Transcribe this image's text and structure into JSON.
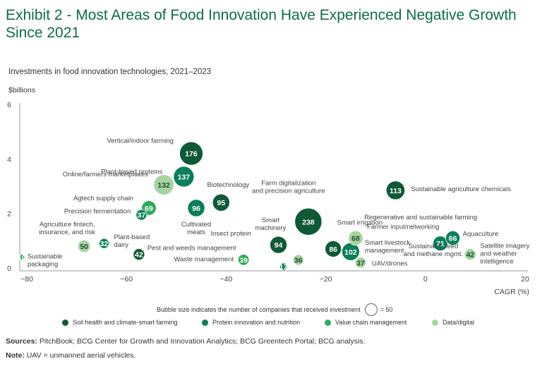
{
  "title": "Exhibit 2 - Most Areas of Food Innovation Have Experienced Negative Growth Since 2021",
  "subtitle": "Investments in food innovation technologies, 2021–2023",
  "size_note": {
    "text": "Bubble size indicates the number of companies that received investment",
    "value": "= 50"
  },
  "legend": [
    {
      "label": "Soil health and climate-smart farming",
      "color": "#0f5a36"
    },
    {
      "label": "Protein innovation and nutrition",
      "color": "#0b7f5b"
    },
    {
      "label": "Value chain management",
      "color": "#2eaa5c"
    },
    {
      "label": "Data/digital",
      "color": "#a6d49f"
    }
  ],
  "sources": {
    "label": "Sources:",
    "text": "PitchBook; BCG Center for Growth and Innovation Analytics; BCG Greentech Portal; BCG analysis."
  },
  "note": {
    "label": "Note:",
    "text": "UAV = unmanned aerial vehicles."
  },
  "chart_data": {
    "type": "scatter",
    "xlabel": "CAGR (%)",
    "ylabel": "$billions",
    "xlim": [
      -82,
      20
    ],
    "ylim": [
      0,
      6
    ],
    "xticks": [
      -80,
      -60,
      -40,
      -20,
      0,
      20
    ],
    "xtick_labels": [
      "−80",
      "−60",
      "−40",
      "−20",
      "0",
      "20"
    ],
    "yticks": [
      0,
      2,
      4,
      6
    ],
    "grid": false,
    "bubble_size_reference": 50,
    "points": [
      {
        "label": "Vertical/indoor farming",
        "x": -47,
        "y": 4.2,
        "size": 176,
        "category": 0
      },
      {
        "label": "Plant-based proteins",
        "x": -48.5,
        "y": 3.35,
        "size": 137,
        "category": 1
      },
      {
        "label": "Online/farmers marketplaces",
        "x": -52.5,
        "y": 3.05,
        "size": 132,
        "category": 3
      },
      {
        "label": "Agtech supply chain",
        "x": -55.5,
        "y": 2.2,
        "size": 69,
        "category": 2
      },
      {
        "label": "Precision fermentation",
        "x": -57,
        "y": 1.95,
        "size": 37,
        "category": 1
      },
      {
        "label": "Cultivated meats",
        "x": -46,
        "y": 2.2,
        "size": 96,
        "category": 1
      },
      {
        "label": "Biotechnology",
        "x": -41,
        "y": 2.4,
        "size": 95,
        "category": 0
      },
      {
        "label": "Agriculture fintech, insurance, and risk",
        "x": -68.5,
        "y": 0.8,
        "size": 50,
        "category": 3
      },
      {
        "label": "Plant-based dairy",
        "x": -64.5,
        "y": 0.9,
        "size": 32,
        "category": 1
      },
      {
        "label": "Sustainable packaging",
        "x": -81,
        "y": 0.4,
        "size": 10,
        "category": 2
      },
      {
        "label": "Pest and weeds management",
        "x": -57.5,
        "y": 0.5,
        "size": 42,
        "category": 0
      },
      {
        "label": "Waste management",
        "x": -36.5,
        "y": 0.3,
        "size": 39,
        "category": 2
      },
      {
        "label": "Insect protein",
        "x": -28.5,
        "y": 0.05,
        "size": 17,
        "category": 1
      },
      {
        "label": "Smart machinery",
        "x": -29.5,
        "y": 0.85,
        "size": 94,
        "category": 0
      },
      {
        "label": "Farm digitalization and precision agriculture",
        "x": -23.5,
        "y": 1.7,
        "size": 238,
        "category": 0
      },
      {
        "label": "Smart irrigation",
        "x": -25.5,
        "y": 0.3,
        "size": 36,
        "category": 3
      },
      {
        "label": "Regenerative and sustainable farming",
        "x": -18.5,
        "y": 0.7,
        "size": 86,
        "category": 0
      },
      {
        "label": "Smart livestock management",
        "x": -15,
        "y": 0.6,
        "size": 102,
        "category": 1
      },
      {
        "label": "Farmer input/networking",
        "x": -14,
        "y": 1.1,
        "size": 68,
        "category": 3
      },
      {
        "label": "UAV/drones",
        "x": -13,
        "y": 0.2,
        "size": 37,
        "category": 3
      },
      {
        "label": "Sustainable agriculture chemicals",
        "x": -6,
        "y": 2.85,
        "size": 113,
        "category": 0
      },
      {
        "label": "Sustainable feed and methane mgmt.",
        "x": 3,
        "y": 0.9,
        "size": 71,
        "category": 1
      },
      {
        "label": "Aquaculture",
        "x": 5.5,
        "y": 1.1,
        "size": 66,
        "category": 1
      },
      {
        "label": "Satellite imagery and weather intelligence",
        "x": 9,
        "y": 0.5,
        "size": 42,
        "category": 3
      }
    ],
    "category_colors": [
      "#0f5a36",
      "#0b7f5b",
      "#2eaa5c",
      "#a6d49f"
    ]
  }
}
